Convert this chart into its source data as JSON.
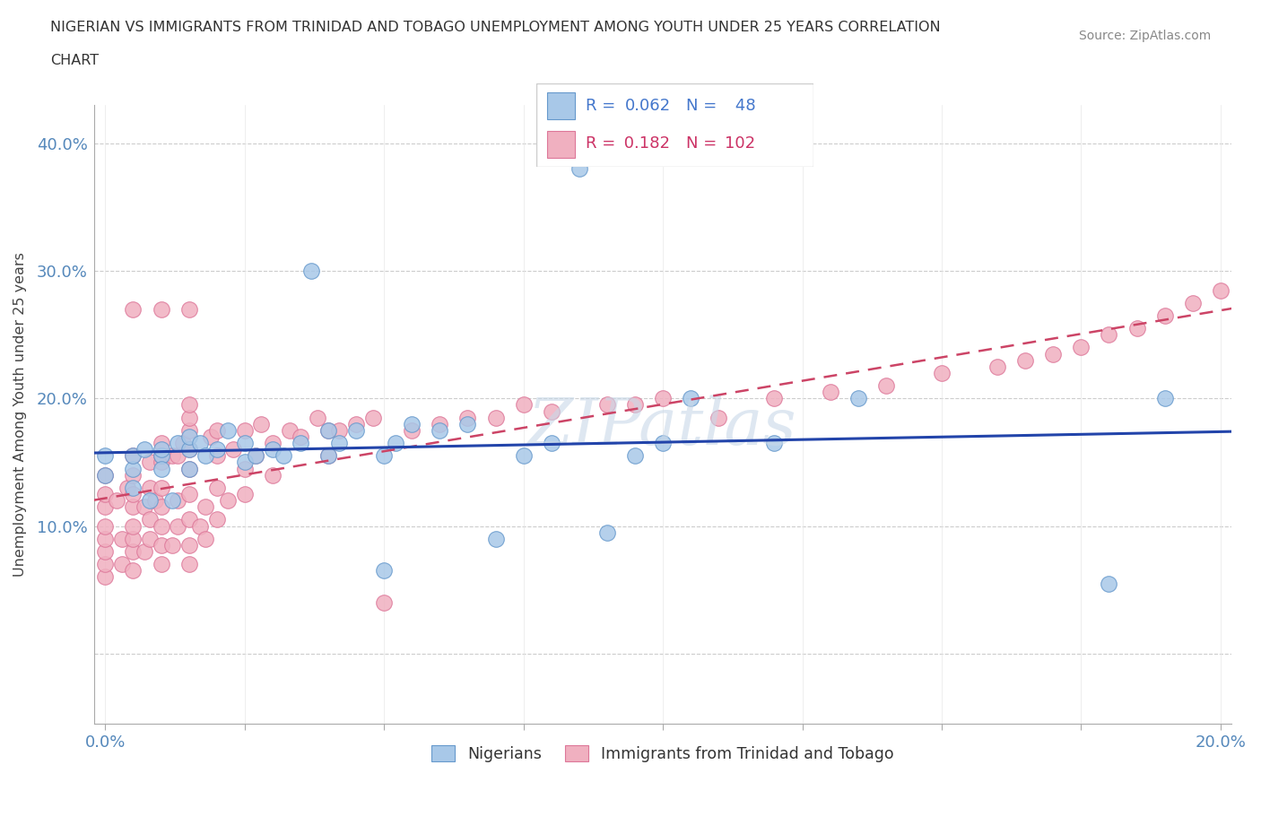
{
  "title_line1": "NIGERIAN VS IMMIGRANTS FROM TRINIDAD AND TOBAGO UNEMPLOYMENT AMONG YOUTH UNDER 25 YEARS CORRELATION",
  "title_line2": "CHART",
  "source": "Source: ZipAtlas.com",
  "ylabel": "Unemployment Among Youth under 25 years",
  "xlim": [
    -0.002,
    0.202
  ],
  "ylim": [
    -0.055,
    0.43
  ],
  "xticks": [
    0.0,
    0.025,
    0.05,
    0.075,
    0.1,
    0.125,
    0.15,
    0.175,
    0.2
  ],
  "yticks": [
    0.0,
    0.1,
    0.2,
    0.3,
    0.4
  ],
  "blue_color": "#a8c8e8",
  "blue_edge_color": "#6699cc",
  "pink_color": "#f0b0c0",
  "pink_edge_color": "#dd7799",
  "blue_line_color": "#2244aa",
  "pink_line_color": "#cc4466",
  "blue_R": 0.062,
  "blue_N": 48,
  "pink_R": 0.182,
  "pink_N": 102,
  "watermark": "ZIPatlas",
  "blue_scatter_x": [
    0.0,
    0.0,
    0.005,
    0.005,
    0.005,
    0.007,
    0.008,
    0.01,
    0.01,
    0.01,
    0.012,
    0.013,
    0.015,
    0.015,
    0.015,
    0.017,
    0.018,
    0.02,
    0.022,
    0.025,
    0.025,
    0.027,
    0.03,
    0.032,
    0.035,
    0.037,
    0.04,
    0.04,
    0.042,
    0.045,
    0.05,
    0.05,
    0.052,
    0.055,
    0.06,
    0.065,
    0.07,
    0.075,
    0.08,
    0.085,
    0.09,
    0.095,
    0.1,
    0.105,
    0.12,
    0.135,
    0.18,
    0.19
  ],
  "blue_scatter_y": [
    0.14,
    0.155,
    0.13,
    0.145,
    0.155,
    0.16,
    0.12,
    0.155,
    0.16,
    0.145,
    0.12,
    0.165,
    0.145,
    0.16,
    0.17,
    0.165,
    0.155,
    0.16,
    0.175,
    0.15,
    0.165,
    0.155,
    0.16,
    0.155,
    0.165,
    0.3,
    0.155,
    0.175,
    0.165,
    0.175,
    0.065,
    0.155,
    0.165,
    0.18,
    0.175,
    0.18,
    0.09,
    0.155,
    0.165,
    0.38,
    0.095,
    0.155,
    0.165,
    0.2,
    0.165,
    0.2,
    0.055,
    0.2
  ],
  "pink_scatter_x": [
    0.0,
    0.0,
    0.0,
    0.0,
    0.0,
    0.0,
    0.0,
    0.0,
    0.002,
    0.003,
    0.003,
    0.004,
    0.005,
    0.005,
    0.005,
    0.005,
    0.005,
    0.005,
    0.005,
    0.005,
    0.005,
    0.007,
    0.007,
    0.008,
    0.008,
    0.008,
    0.008,
    0.009,
    0.01,
    0.01,
    0.01,
    0.01,
    0.01,
    0.01,
    0.01,
    0.01,
    0.01,
    0.012,
    0.012,
    0.013,
    0.013,
    0.013,
    0.014,
    0.015,
    0.015,
    0.015,
    0.015,
    0.015,
    0.015,
    0.015,
    0.015,
    0.015,
    0.015,
    0.017,
    0.018,
    0.018,
    0.019,
    0.02,
    0.02,
    0.02,
    0.02,
    0.022,
    0.023,
    0.025,
    0.025,
    0.025,
    0.027,
    0.028,
    0.03,
    0.03,
    0.033,
    0.035,
    0.038,
    0.04,
    0.04,
    0.042,
    0.045,
    0.048,
    0.05,
    0.055,
    0.06,
    0.065,
    0.07,
    0.075,
    0.08,
    0.09,
    0.095,
    0.1,
    0.11,
    0.12,
    0.13,
    0.14,
    0.15,
    0.16,
    0.165,
    0.17,
    0.175,
    0.18,
    0.185,
    0.19,
    0.195,
    0.2
  ],
  "pink_scatter_y": [
    0.06,
    0.07,
    0.08,
    0.09,
    0.1,
    0.115,
    0.125,
    0.14,
    0.12,
    0.07,
    0.09,
    0.13,
    0.065,
    0.08,
    0.09,
    0.1,
    0.115,
    0.125,
    0.14,
    0.155,
    0.27,
    0.08,
    0.115,
    0.09,
    0.105,
    0.13,
    0.15,
    0.12,
    0.07,
    0.085,
    0.1,
    0.115,
    0.13,
    0.15,
    0.155,
    0.165,
    0.27,
    0.085,
    0.155,
    0.1,
    0.12,
    0.155,
    0.165,
    0.07,
    0.085,
    0.105,
    0.125,
    0.145,
    0.16,
    0.175,
    0.185,
    0.195,
    0.27,
    0.1,
    0.09,
    0.115,
    0.17,
    0.105,
    0.13,
    0.155,
    0.175,
    0.12,
    0.16,
    0.125,
    0.145,
    0.175,
    0.155,
    0.18,
    0.14,
    0.165,
    0.175,
    0.17,
    0.185,
    0.155,
    0.175,
    0.175,
    0.18,
    0.185,
    0.04,
    0.175,
    0.18,
    0.185,
    0.185,
    0.195,
    0.19,
    0.195,
    0.195,
    0.2,
    0.185,
    0.2,
    0.205,
    0.21,
    0.22,
    0.225,
    0.23,
    0.235,
    0.24,
    0.25,
    0.255,
    0.265,
    0.275,
    0.285
  ]
}
